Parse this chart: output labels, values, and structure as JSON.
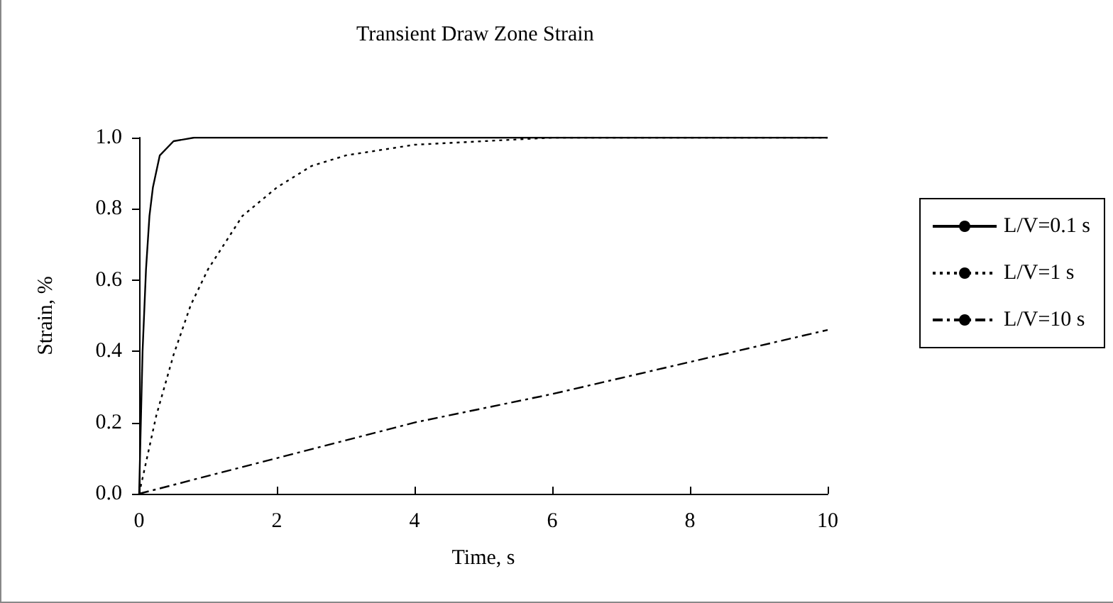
{
  "chart_data": {
    "type": "line",
    "title": "Transient Draw Zone Strain",
    "xlabel": "Time, s",
    "ylabel": "Strain, %",
    "xlim": [
      0,
      10
    ],
    "xticks": [
      0,
      2,
      4,
      6,
      8,
      10
    ],
    "ylim": [
      0,
      1
    ],
    "yticks": [
      {
        "value": 0,
        "label": "0.0"
      },
      {
        "value": 0.2,
        "label": "0.2"
      },
      {
        "value": 0.4,
        "label": "0.4"
      },
      {
        "value": 0.6,
        "label": "0.6"
      },
      {
        "value": 0.8,
        "label": "0.8"
      },
      {
        "value": 1,
        "label": "1.0"
      }
    ],
    "grid": false,
    "legend": "right",
    "marker": "none",
    "series": [
      {
        "name": "L/V=0.1 s",
        "color": "#000000",
        "line_style": "solid",
        "x": [
          0,
          0.05,
          0.1,
          0.15,
          0.2,
          0.3,
          0.5,
          0.8,
          10
        ],
        "values": [
          0,
          0.4,
          0.63,
          0.78,
          0.86,
          0.95,
          0.99,
          1.0,
          1.0
        ]
      },
      {
        "name": "L/V=1 s",
        "color": "#000000",
        "line_style": "dotted",
        "x": [
          0,
          0.25,
          0.5,
          0.75,
          1,
          1.5,
          2,
          2.5,
          3,
          4,
          5,
          6,
          10
        ],
        "values": [
          0,
          0.22,
          0.39,
          0.53,
          0.63,
          0.78,
          0.86,
          0.92,
          0.95,
          0.98,
          0.99,
          1.0,
          1.0
        ]
      },
      {
        "name": "L/V=10 s",
        "color": "#000000",
        "line_style": "dashdot",
        "x": [
          0,
          2,
          4,
          6,
          8,
          10
        ],
        "values": [
          0,
          0.1,
          0.2,
          0.28,
          0.37,
          0.46
        ]
      }
    ]
  }
}
